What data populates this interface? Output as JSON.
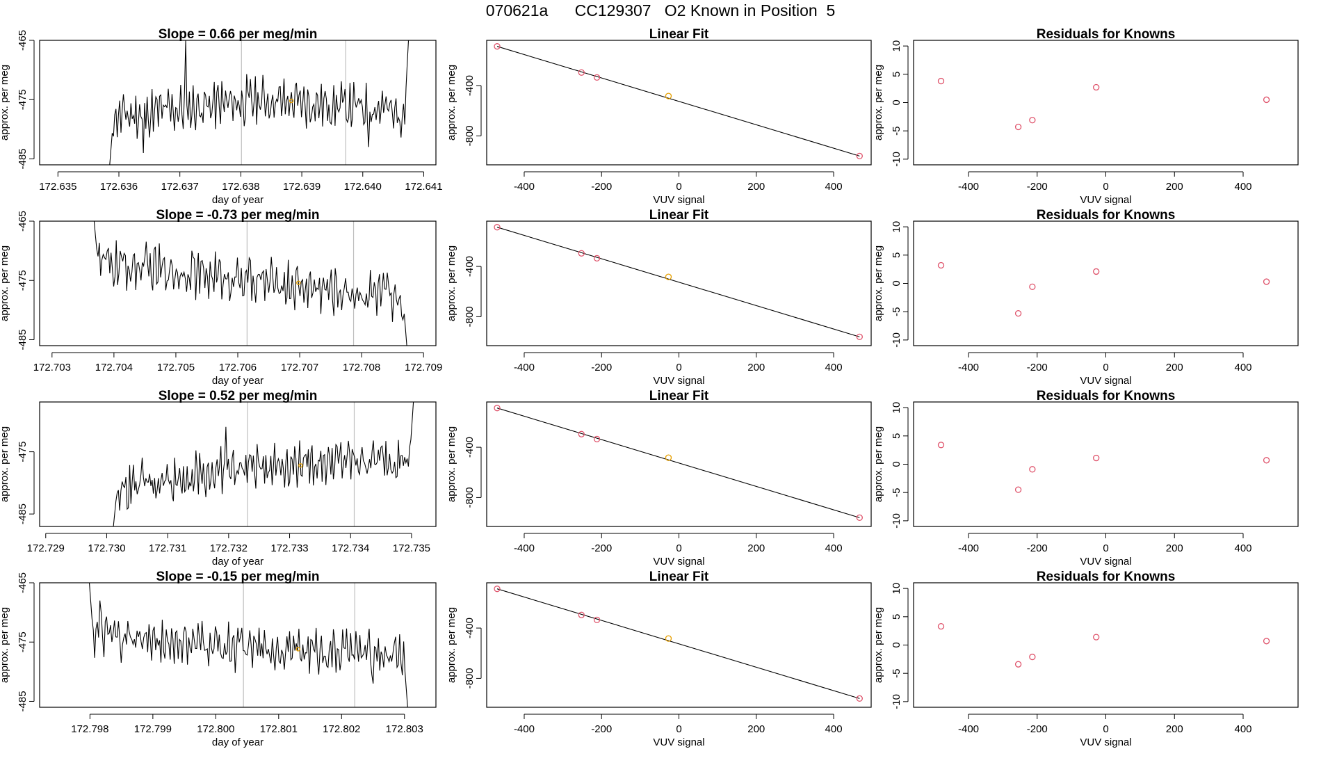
{
  "title": "070621a      CC129307   O2 Known in Position  5",
  "colors": {
    "line": "#000000",
    "grid": "#bebebe",
    "marker_orange": "#e69f00",
    "marker_red": "#df536b"
  },
  "chart_data": [
    {
      "type": "line",
      "title": "Slope =  0.66  per meg/min",
      "xlabel": "day of year",
      "ylabel": "approx. per meg",
      "xlim": [
        172.6347,
        172.6412
      ],
      "xticks": [
        "172.635",
        "172.636",
        "172.637",
        "172.638",
        "172.639",
        "172.640",
        "172.641"
      ],
      "xtick_values": [
        172.635,
        172.636,
        172.637,
        172.638,
        172.639,
        172.64,
        172.641
      ],
      "ylim": [
        -486,
        -465
      ],
      "yticks": [
        "-465",
        "-475",
        "-485"
      ],
      "ytick_values": [
        -465,
        -475,
        -485
      ],
      "start": 172.63585,
      "end": 172.64075,
      "start_y": -486,
      "end_y": -465,
      "level": [
        -478,
        -475,
        -477
      ],
      "mean": -476.7,
      "amplitude": 3.5,
      "spikes": [
        {
          "x": 172.6364,
          "y": -484
        },
        {
          "x": 172.6371,
          "y": -465
        },
        {
          "x": 172.6401,
          "y": -483
        }
      ],
      "vlines": [
        172.63801,
        172.63972
      ],
      "marker": {
        "x": 172.63883,
        "y": -475.2
      }
    },
    {
      "type": "line",
      "title": "Slope =  -0.73  per meg/min",
      "xlabel": "day of year",
      "ylabel": "approx. per meg",
      "xlim": [
        172.7028,
        172.7092
      ],
      "xticks": [
        "172.703",
        "172.704",
        "172.705",
        "172.706",
        "172.707",
        "172.708",
        "172.709"
      ],
      "xtick_values": [
        172.703,
        172.704,
        172.705,
        172.706,
        172.707,
        172.708,
        172.709
      ],
      "ylim": [
        -486,
        -465
      ],
      "yticks": [
        "-465",
        "-475",
        "-485"
      ],
      "ytick_values": [
        -465,
        -475,
        -485
      ],
      "start": 172.70368,
      "end": 172.70873,
      "start_y": -465,
      "end_y": -486,
      "level": [
        -472,
        -475,
        -478
      ],
      "mean": -475.5,
      "amplitude": 3.5,
      "spikes": [
        {
          "x": 172.70525,
          "y": -470
        },
        {
          "x": 172.7085,
          "y": -482
        }
      ],
      "vlines": [
        172.70615,
        172.70787
      ],
      "marker": {
        "x": 172.70698,
        "y": -475.4
      }
    },
    {
      "type": "line",
      "title": "Slope =  0.52  per meg/min",
      "xlabel": "day of year",
      "ylabel": "approx. per meg",
      "xlim": [
        172.7289,
        172.7354
      ],
      "xticks": [
        "172.729",
        "172.730",
        "172.731",
        "172.732",
        "172.733",
        "172.734",
        "172.735"
      ],
      "xtick_values": [
        172.729,
        172.73,
        172.731,
        172.732,
        172.733,
        172.734,
        172.735
      ],
      "ylim": [
        -487,
        -467
      ],
      "yticks": [
        "-475",
        "-485"
      ],
      "ytick_values": [
        -475,
        -485
      ],
      "start": 172.73011,
      "end": 172.73503,
      "start_y": -487,
      "end_y": -467,
      "level": [
        -481,
        -477,
        -476
      ],
      "mean": -477.3,
      "amplitude": 3.2,
      "spikes": [
        {
          "x": 172.73035,
          "y": -484
        },
        {
          "x": 172.73195,
          "y": -471
        }
      ],
      "vlines": [
        172.73231,
        172.73406
      ],
      "marker": {
        "x": 172.73318,
        "y": -477.2
      }
    },
    {
      "type": "line",
      "title": "Slope =  -0.15  per meg/min",
      "xlabel": "day of year",
      "ylabel": "approx. per meg",
      "xlim": [
        172.7972,
        172.8035
      ],
      "xticks": [
        "172.798",
        "172.799",
        "172.800",
        "172.801",
        "172.802",
        "172.803"
      ],
      "xtick_values": [
        172.798,
        172.799,
        172.8,
        172.801,
        172.802,
        172.803
      ],
      "ylim": [
        -486,
        -465
      ],
      "yticks": [
        "-465",
        "-475",
        "-485"
      ],
      "ytick_values": [
        -465,
        -475,
        -485
      ],
      "start": 172.79799,
      "end": 172.80305,
      "start_y": -465,
      "end_y": -486,
      "level": [
        -474,
        -476,
        -477
      ],
      "mean": -475.8,
      "amplitude": 3.3,
      "spikes": [
        {
          "x": 172.79815,
          "y": -468
        },
        {
          "x": 172.8025,
          "y": -482
        }
      ],
      "vlines": [
        172.80044,
        172.80221
      ],
      "marker": {
        "x": 172.80131,
        "y": -476.2
      }
    },
    {
      "type": "scatter",
      "title": "Linear Fit",
      "xlabel": "VUV signal",
      "ylabel": "approx. per meg",
      "xlim": [
        -497,
        497
      ],
      "xticks": [
        "-400",
        "-200",
        "0",
        "200",
        "400"
      ],
      "xtick_values": [
        -400,
        -200,
        0,
        200,
        400
      ],
      "ylim": [
        -1030,
        -40
      ],
      "yticks": [
        "-400",
        "-800"
      ],
      "ytick_values": [
        -400,
        -800
      ],
      "fit_line": [
        [
          -470,
          -88
        ],
        [
          467,
          -960
        ]
      ],
      "points": [
        {
          "x": -470,
          "y": -88,
          "c": "red"
        },
        {
          "x": -252,
          "y": -296,
          "c": "red"
        },
        {
          "x": -212,
          "y": -335,
          "c": "red"
        },
        {
          "x": -27,
          "y": -483,
          "c": "orange"
        },
        {
          "x": 467,
          "y": -960,
          "c": "red"
        }
      ]
    },
    {
      "type": "scatter",
      "title": "Linear Fit",
      "xlabel": "VUV signal",
      "ylabel": "approx. per meg",
      "xlim": [
        -497,
        497
      ],
      "xticks": [
        "-400",
        "-200",
        "0",
        "200",
        "400"
      ],
      "xtick_values": [
        -400,
        -200,
        0,
        200,
        400
      ],
      "ylim": [
        -1030,
        -40
      ],
      "yticks": [
        "-400",
        "-800"
      ],
      "ytick_values": [
        -400,
        -800
      ],
      "fit_line": [
        [
          -470,
          -88
        ],
        [
          467,
          -960
        ]
      ],
      "points": [
        {
          "x": -470,
          "y": -88,
          "c": "red"
        },
        {
          "x": -252,
          "y": -296,
          "c": "red"
        },
        {
          "x": -212,
          "y": -335,
          "c": "red"
        },
        {
          "x": -27,
          "y": -483,
          "c": "orange"
        },
        {
          "x": 467,
          "y": -960,
          "c": "red"
        }
      ]
    },
    {
      "type": "scatter",
      "title": "Linear Fit",
      "xlabel": "VUV signal",
      "ylabel": "approx. per meg",
      "xlim": [
        -497,
        497
      ],
      "xticks": [
        "-400",
        "-200",
        "0",
        "200",
        "400"
      ],
      "xtick_values": [
        -400,
        -200,
        0,
        200,
        400
      ],
      "ylim": [
        -1030,
        -40
      ],
      "yticks": [
        "-400",
        "-800"
      ],
      "ytick_values": [
        -400,
        -800
      ],
      "fit_line": [
        [
          -470,
          -88
        ],
        [
          467,
          -960
        ]
      ],
      "points": [
        {
          "x": -470,
          "y": -88,
          "c": "red"
        },
        {
          "x": -252,
          "y": -296,
          "c": "red"
        },
        {
          "x": -212,
          "y": -335,
          "c": "red"
        },
        {
          "x": -27,
          "y": -483,
          "c": "orange"
        },
        {
          "x": 467,
          "y": -960,
          "c": "red"
        }
      ]
    },
    {
      "type": "scatter",
      "title": "Linear Fit",
      "xlabel": "VUV signal",
      "ylabel": "approx. per meg",
      "xlim": [
        -497,
        497
      ],
      "xticks": [
        "-400",
        "-200",
        "0",
        "200",
        "400"
      ],
      "xtick_values": [
        -400,
        -200,
        0,
        200,
        400
      ],
      "ylim": [
        -1030,
        -40
      ],
      "yticks": [
        "-400",
        "-800"
      ],
      "ytick_values": [
        -400,
        -800
      ],
      "fit_line": [
        [
          -470,
          -88
        ],
        [
          467,
          -960
        ]
      ],
      "points": [
        {
          "x": -470,
          "y": -88,
          "c": "red"
        },
        {
          "x": -252,
          "y": -296,
          "c": "red"
        },
        {
          "x": -212,
          "y": -335,
          "c": "red"
        },
        {
          "x": -27,
          "y": -483,
          "c": "orange"
        },
        {
          "x": 467,
          "y": -960,
          "c": "red"
        }
      ]
    },
    {
      "type": "scatter",
      "title": "Residuals for Knowns",
      "xlabel": "VUV signal",
      "ylabel": "approx. per meg",
      "xlim": [
        -560,
        560
      ],
      "xticks": [
        "-400",
        "-200",
        "0",
        "200",
        "400"
      ],
      "xtick_values": [
        -400,
        -200,
        0,
        200,
        400
      ],
      "ylim": [
        -11,
        11
      ],
      "yticks": [
        "10",
        "5",
        "0",
        "-5",
        "-10"
      ],
      "ytick_values": [
        10,
        5,
        0,
        -5,
        -10
      ],
      "points": [
        {
          "x": -480,
          "y": 3.8,
          "c": "red"
        },
        {
          "x": -255,
          "y": -4.3,
          "c": "red"
        },
        {
          "x": -214,
          "y": -3.1,
          "c": "red"
        },
        {
          "x": -28,
          "y": 2.7,
          "c": "red"
        },
        {
          "x": 468,
          "y": 0.5,
          "c": "red"
        }
      ]
    },
    {
      "type": "scatter",
      "title": "Residuals for Knowns",
      "xlabel": "VUV signal",
      "ylabel": "approx. per meg",
      "xlim": [
        -560,
        560
      ],
      "xticks": [
        "-400",
        "-200",
        "0",
        "200",
        "400"
      ],
      "xtick_values": [
        -400,
        -200,
        0,
        200,
        400
      ],
      "ylim": [
        -11,
        11
      ],
      "yticks": [
        "10",
        "5",
        "0",
        "-5",
        "-10"
      ],
      "ytick_values": [
        10,
        5,
        0,
        -5,
        -10
      ],
      "points": [
        {
          "x": -480,
          "y": 3.2,
          "c": "red"
        },
        {
          "x": -255,
          "y": -5.3,
          "c": "red"
        },
        {
          "x": -214,
          "y": -0.6,
          "c": "red"
        },
        {
          "x": -28,
          "y": 2.1,
          "c": "red"
        },
        {
          "x": 468,
          "y": 0.3,
          "c": "red"
        }
      ]
    },
    {
      "type": "scatter",
      "title": "Residuals for Knowns",
      "xlabel": "VUV signal",
      "ylabel": "approx. per meg",
      "xlim": [
        -560,
        560
      ],
      "xticks": [
        "-400",
        "-200",
        "0",
        "200",
        "400"
      ],
      "xtick_values": [
        -400,
        -200,
        0,
        200,
        400
      ],
      "ylim": [
        -11,
        11
      ],
      "yticks": [
        "10",
        "5",
        "0",
        "-5",
        "-10"
      ],
      "ytick_values": [
        10,
        5,
        0,
        -5,
        -10
      ],
      "points": [
        {
          "x": -480,
          "y": 3.4,
          "c": "red"
        },
        {
          "x": -255,
          "y": -4.5,
          "c": "red"
        },
        {
          "x": -214,
          "y": -0.9,
          "c": "red"
        },
        {
          "x": -28,
          "y": 1.1,
          "c": "red"
        },
        {
          "x": 468,
          "y": 0.7,
          "c": "red"
        }
      ]
    },
    {
      "type": "scatter",
      "title": "Residuals for Knowns",
      "xlabel": "VUV signal",
      "ylabel": "approx. per meg",
      "xlim": [
        -560,
        560
      ],
      "xticks": [
        "-400",
        "-200",
        "0",
        "200",
        "400"
      ],
      "xtick_values": [
        -400,
        -200,
        0,
        200,
        400
      ],
      "ylim": [
        -11,
        11
      ],
      "yticks": [
        "10",
        "5",
        "0",
        "-5",
        "-10"
      ],
      "ytick_values": [
        10,
        5,
        0,
        -5,
        -10
      ],
      "points": [
        {
          "x": -480,
          "y": 3.3,
          "c": "red"
        },
        {
          "x": -255,
          "y": -3.4,
          "c": "red"
        },
        {
          "x": -214,
          "y": -2.1,
          "c": "red"
        },
        {
          "x": -28,
          "y": 1.4,
          "c": "red"
        },
        {
          "x": 468,
          "y": 0.7,
          "c": "red"
        }
      ]
    }
  ]
}
